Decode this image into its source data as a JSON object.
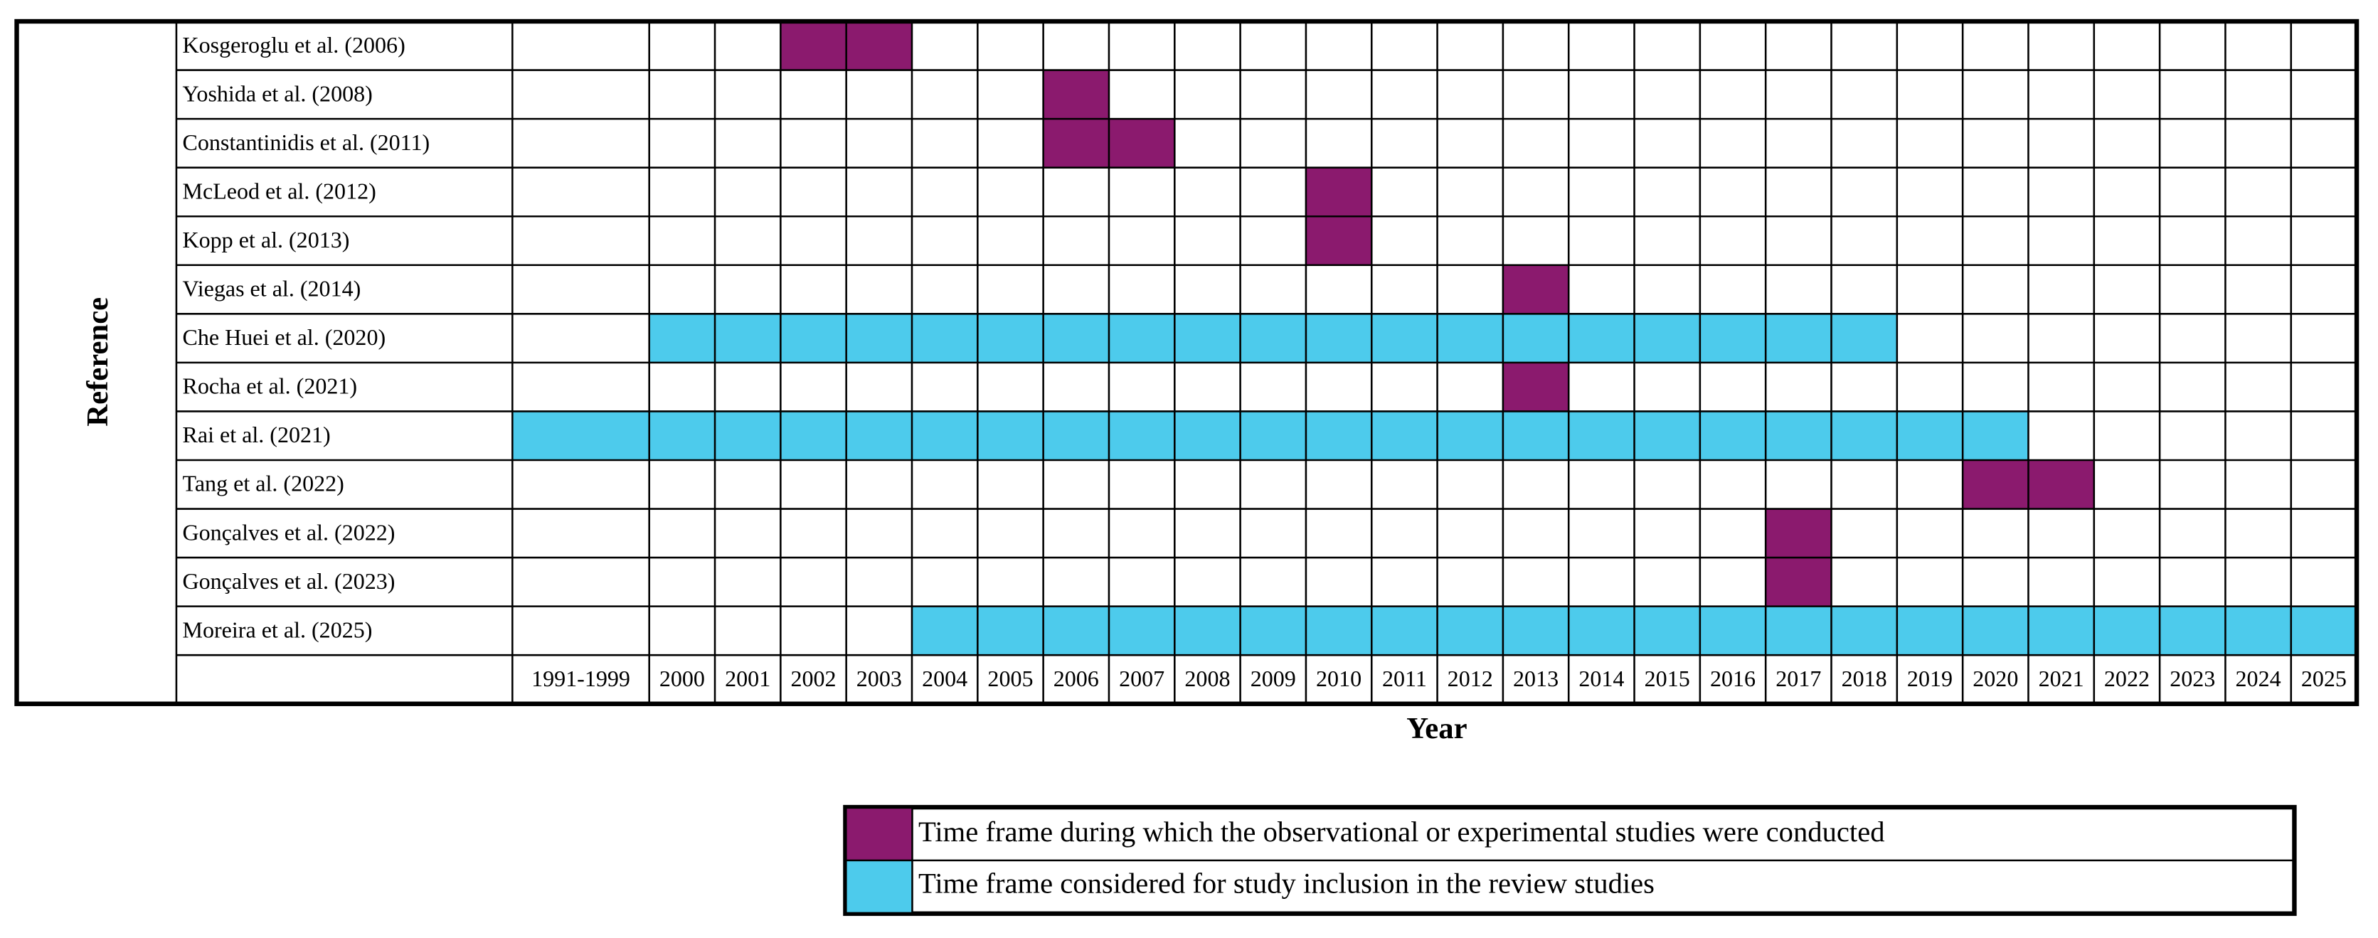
{
  "y_axis_label": "Reference",
  "x_axis_label": "Year",
  "columns": [
    "1991-1999",
    "2000",
    "2001",
    "2002",
    "2003",
    "2004",
    "2005",
    "2006",
    "2007",
    "2008",
    "2009",
    "2010",
    "2011",
    "2012",
    "2013",
    "2014",
    "2015",
    "2016",
    "2017",
    "2018",
    "2019",
    "2020",
    "2021",
    "2022",
    "2023",
    "2024",
    "2025"
  ],
  "rows": [
    {
      "label": "Kosgeroglu et al. (2006)",
      "spans": [
        {
          "start": "2002",
          "end": "2003",
          "color": "#8b1a6e"
        }
      ]
    },
    {
      "label": "Yoshida et al. (2008)",
      "spans": [
        {
          "start": "2006",
          "end": "2006",
          "color": "#8b1a6e"
        }
      ]
    },
    {
      "label": "Constantinidis et al. (2011)",
      "spans": [
        {
          "start": "2006",
          "end": "2007",
          "color": "#8b1a6e"
        }
      ]
    },
    {
      "label": "McLeod et al. (2012)",
      "spans": [
        {
          "start": "2010",
          "end": "2010",
          "color": "#8b1a6e"
        }
      ]
    },
    {
      "label": "Kopp et al. (2013)",
      "spans": [
        {
          "start": "2010",
          "end": "2010",
          "color": "#8b1a6e"
        }
      ]
    },
    {
      "label": "Viegas et al. (2014)",
      "spans": [
        {
          "start": "2013",
          "end": "2013",
          "color": "#8b1a6e"
        }
      ]
    },
    {
      "label": "Che Huei et al. (2020)",
      "spans": [
        {
          "start": "2000",
          "end": "2018",
          "color": "#4dcbec"
        }
      ]
    },
    {
      "label": "Rocha et al. (2021)",
      "spans": [
        {
          "start": "2013",
          "end": "2013",
          "color": "#8b1a6e"
        }
      ]
    },
    {
      "label": "Rai et al. (2021)",
      "spans": [
        {
          "start": "1991-1999",
          "end": "2020",
          "color": "#4dcbec"
        }
      ]
    },
    {
      "label": "Tang et al. (2022)",
      "spans": [
        {
          "start": "2020",
          "end": "2021",
          "color": "#8b1a6e"
        }
      ]
    },
    {
      "label": "Gonçalves et al. (2022)",
      "spans": [
        {
          "start": "2017",
          "end": "2017",
          "color": "#8b1a6e"
        }
      ]
    },
    {
      "label": "Gonçalves et al. (2023)",
      "spans": [
        {
          "start": "2017",
          "end": "2017",
          "color": "#8b1a6e"
        }
      ]
    },
    {
      "label": "Moreira et al. (2025)",
      "spans": [
        {
          "start": "2004",
          "end": "2025",
          "color": "#4dcbec"
        }
      ]
    }
  ],
  "legend": [
    {
      "label": "Time frame during which the observational or experimental studies were conducted",
      "color": "#8b1a6e"
    },
    {
      "label": "Time frame considered for study inclusion in the review studies",
      "color": "#4dcbec"
    }
  ]
}
